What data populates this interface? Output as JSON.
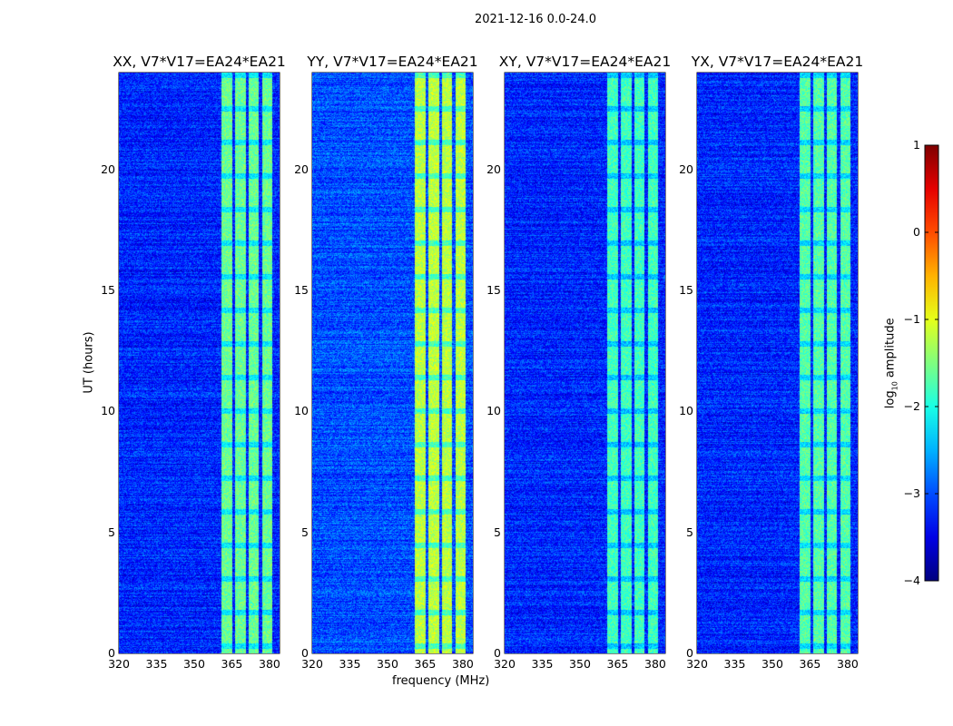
{
  "suptitle": "2021-12-16 0.0-24.0",
  "chart_data": {
    "type": "heatmap",
    "title": "2021-12-16 0.0-24.0",
    "xlabel": "frequency (MHz)",
    "ylabel": "UT (hours)",
    "xlim": [
      320,
      384
    ],
    "ylim": [
      0,
      24
    ],
    "xticks": [
      "320",
      "335",
      "350",
      "365",
      "380"
    ],
    "xtick_values": [
      320,
      335,
      350,
      365,
      380
    ],
    "yticks": [
      "0",
      "5",
      "10",
      "15",
      "20"
    ],
    "ytick_values": [
      0,
      5,
      10,
      15,
      20
    ],
    "colorbar": {
      "label_main": "log",
      "label_sub": "10",
      "label_rest": " amplitude",
      "range": [
        -4,
        1
      ],
      "ticks": [
        "1",
        "0",
        "−1",
        "−2",
        "−3",
        "−4"
      ],
      "tick_values": [
        1,
        0,
        -1,
        -2,
        -3,
        -4
      ],
      "colormap": "jet"
    },
    "panels": [
      {
        "title": "XX, V7*V17=EA24*EA21",
        "background_level": -3.2,
        "band_level": -1.6,
        "black_gap": [
          20.6,
          20.9
        ]
      },
      {
        "title": "YY, V7*V17=EA24*EA21",
        "background_level": -3.0,
        "band_level": -1.2,
        "black_gap": null
      },
      {
        "title": "XY, V7*V17=EA24*EA21",
        "background_level": -3.2,
        "band_level": -1.8,
        "black_gap": null
      },
      {
        "title": "YX, V7*V17=EA24*EA21",
        "background_level": -3.2,
        "band_level": -1.7,
        "black_gap": [
          20.6,
          20.9
        ]
      }
    ],
    "bright_bands_mhz": [
      [
        360.5,
        365
      ],
      [
        366,
        370.5
      ],
      [
        371.5,
        375.5
      ],
      [
        377,
        381
      ]
    ],
    "flagged_white_hours": [
      [
        22.9,
        23.3
      ],
      [
        22.45,
        22.6
      ],
      [
        22.15,
        22.25
      ],
      [
        21.9,
        22.0
      ],
      [
        20.95,
        21.7
      ],
      [
        19.9,
        20.0
      ],
      [
        19.45,
        19.55
      ],
      [
        19.1,
        19.2
      ],
      [
        18.7,
        18.75
      ],
      [
        18.25,
        18.3
      ],
      [
        17.9,
        17.95
      ],
      [
        16.3,
        17.6
      ],
      [
        12.4,
        12.65
      ],
      [
        11.65,
        11.8
      ],
      [
        10.3,
        10.42
      ],
      [
        8.75,
        8.92
      ],
      [
        8.35,
        8.42
      ],
      [
        7.45,
        7.5
      ],
      [
        3.5,
        3.55
      ],
      [
        3.2,
        3.25
      ],
      [
        0.3,
        0.42
      ]
    ],
    "flagged_black_hours": [
      [
        15.7,
        15.8
      ],
      [
        15.0,
        15.05
      ],
      [
        14.7,
        14.75
      ],
      [
        14.2,
        14.25
      ],
      [
        13.9,
        13.95
      ],
      [
        10.9,
        10.95
      ],
      [
        10.75,
        10.8
      ],
      [
        10.5,
        10.55
      ],
      [
        5.6,
        5.65
      ],
      [
        5.1,
        5.2
      ],
      [
        4.8,
        4.85
      ],
      [
        4.55,
        4.6
      ],
      [
        2.55,
        2.6
      ],
      [
        2.1,
        2.15
      ],
      [
        1.6,
        1.65
      ],
      [
        1.05,
        1.1
      ],
      [
        0.55,
        0.6
      ]
    ]
  }
}
